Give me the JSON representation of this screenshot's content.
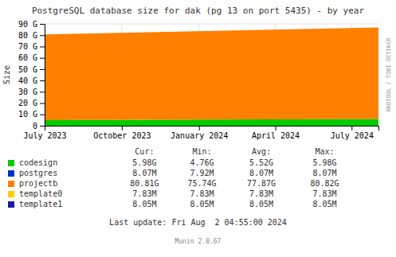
{
  "chart_data": {
    "type": "area",
    "stacked": true,
    "title": "PostgreSQL database size for dak (pg 13 on port 5435) - by year",
    "ylabel": "Size",
    "x": [
      1688169600,
      1722556800
    ],
    "xlim": [
      1688169600,
      1722556800
    ],
    "xticks": [
      {
        "value": 1688169600,
        "label": "July 2023"
      },
      {
        "value": 1696118400,
        "label": "October 2023"
      },
      {
        "value": 1704067200,
        "label": "January 2024"
      },
      {
        "value": 1711929600,
        "label": "April 2024"
      },
      {
        "value": 1719792000,
        "label": "July 2024"
      }
    ],
    "ylim": [
      0,
      96636764160
    ],
    "yticks": [
      0,
      {
        "value": 10737418240,
        "label": "10 G"
      },
      {
        "value": 21474836480,
        "label": "20 G"
      },
      {
        "value": 32212254720,
        "label": "30 G"
      },
      {
        "value": 42949672960,
        "label": "40 G"
      },
      {
        "value": 53687091200,
        "label": "50 G"
      },
      {
        "value": 64424509440,
        "label": "60 G"
      },
      {
        "value": 75161927680,
        "label": "70 G"
      },
      {
        "value": 85899345920,
        "label": "80 G"
      },
      {
        "value": 96636764160,
        "label": "90 G"
      }
    ],
    "grid": true,
    "legend": "bottom",
    "series": [
      {
        "name": "codesign",
        "color": "#00cc00",
        "values": [
          5368709120,
          6421001216
        ]
      },
      {
        "name": "postgres",
        "color": "#0033cc",
        "values": [
          8462336,
          8462336
        ]
      },
      {
        "name": "projectb",
        "color": "#ff7f00",
        "values": [
          81316069376,
          86761734144
        ]
      },
      {
        "name": "template0",
        "color": "#ffcc00",
        "values": [
          8208384,
          8208384
        ]
      },
      {
        "name": "template1",
        "color": "#1a1aaa",
        "values": [
          8445952,
          8445952
        ]
      }
    ],
    "table": {
      "headers": [
        "Cur:",
        "Min:",
        "Avg:",
        "Max:"
      ],
      "rows": [
        [
          "5.98G",
          "4.76G",
          "5.52G",
          "5.98G"
        ],
        [
          "8.07M",
          "7.92M",
          "8.07M",
          "8.07M"
        ],
        [
          "80.81G",
          "75.74G",
          "77.87G",
          "80.82G"
        ],
        [
          "7.83M",
          "7.83M",
          "7.83M",
          "7.83M"
        ],
        [
          "8.05M",
          "8.05M",
          "8.05M",
          "8.05M"
        ]
      ]
    },
    "annotations": [
      "Last update: Fri Aug  2 04:55:00 2024",
      "Munin 2.0.67",
      "RRDTOOL / TOBI OETIKER"
    ]
  }
}
